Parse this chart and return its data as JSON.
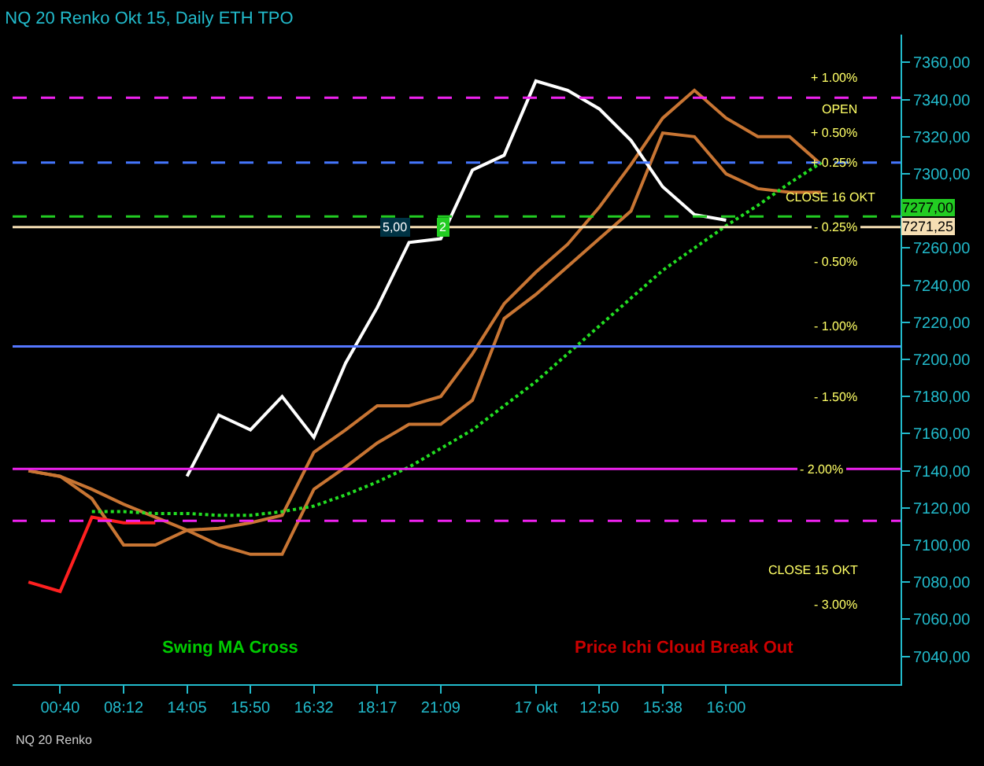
{
  "chart_data": {
    "type": "line",
    "title": "NQ 20 Renko Okt 15, Daily ETH TPO",
    "subtitle": "NQ 20 Renko",
    "categories": [
      null,
      "00:40",
      null,
      "08:12",
      null,
      "14:05",
      null,
      "15:50",
      null,
      "16:32",
      null,
      "18:17",
      null,
      "21:09",
      null,
      null,
      "17 okt",
      null,
      "12:50",
      null,
      "15:38",
      null,
      "16:00",
      null,
      null,
      null,
      null,
      null
    ],
    "ylim": [
      7025,
      7375
    ],
    "yticks": [
      {
        "value": 7040,
        "label": "7040,00"
      },
      {
        "value": 7060,
        "label": "7060,00"
      },
      {
        "value": 7080,
        "label": "7080,00"
      },
      {
        "value": 7100,
        "label": "7100,00"
      },
      {
        "value": 7120,
        "label": "7120,00"
      },
      {
        "value": 7140,
        "label": "7140,00"
      },
      {
        "value": 7160,
        "label": "7160,00"
      },
      {
        "value": 7180,
        "label": "7180,00"
      },
      {
        "value": 7200,
        "label": "7200,00"
      },
      {
        "value": 7220,
        "label": "7220,00"
      },
      {
        "value": 7240,
        "label": "7240,00"
      },
      {
        "value": 7260,
        "label": "7260,00"
      },
      {
        "value": 7280,
        "label": null
      },
      {
        "value": 7300,
        "label": "7300,00"
      },
      {
        "value": 7320,
        "label": "7320,00"
      },
      {
        "value": 7340,
        "label": "7340,00"
      },
      {
        "value": 7360,
        "label": "7360,00"
      }
    ],
    "grid": false,
    "series": [
      {
        "color": "#c87533",
        "values": [
          7140,
          7137,
          7130,
          7122,
          7115,
          7108,
          7109,
          7112,
          7116,
          7150,
          7162,
          7175,
          7175,
          7180,
          7203,
          7230,
          7247,
          7262,
          7282,
          7305,
          7330,
          7345,
          7330,
          7320,
          7320,
          7305,
          null,
          null
        ]
      },
      {
        "color": "#c87533",
        "values": [
          7140,
          7137,
          7125,
          7100,
          7100,
          7108,
          7100,
          7095,
          7095,
          7130,
          7142,
          7155,
          7165,
          7165,
          7178,
          7222,
          7235,
          7250,
          7265,
          7280,
          7322,
          7320,
          7300,
          7292,
          7290,
          7290,
          null,
          null
        ]
      },
      {
        "color": "#22dd22",
        "line_style": "dotted",
        "values": [
          null,
          null,
          7118,
          7118,
          7117,
          7117,
          7116,
          7116,
          7118,
          7121,
          7127,
          7134,
          7142,
          7152,
          7162,
          7175,
          7188,
          7203,
          7218,
          7233,
          7248,
          7260,
          7272,
          7283,
          7295,
          7306,
          null,
          null
        ]
      },
      {
        "color": "#ff2020",
        "values": [
          7080,
          7075,
          7115,
          7112,
          7112,
          null,
          null,
          null,
          null,
          null,
          null,
          null,
          null,
          null,
          null,
          null,
          null,
          null,
          null,
          null,
          null,
          null,
          null,
          null,
          null,
          null,
          null,
          null
        ]
      },
      {
        "color": "#ffffff",
        "values": [
          null,
          null,
          null,
          null,
          null,
          7137,
          7170,
          7162,
          7180,
          7158,
          7198,
          7228,
          7263,
          7265,
          7302,
          7310,
          7350,
          7345,
          7335,
          7318,
          7293,
          7278,
          7275,
          null,
          null,
          null,
          null,
          null
        ]
      }
    ],
    "ref_lines": [
      {
        "axis": "y",
        "value": 7277,
        "label": "7277,00",
        "color": "#22cc22",
        "line_style": "dashed"
      },
      {
        "axis": "y",
        "value": 7271.25,
        "label": "7271,25",
        "color": "#f5deb3",
        "line_style": "solid"
      },
      {
        "axis": "y",
        "value": 7306,
        "color": "#4477ff",
        "line_style": "dashed"
      },
      {
        "axis": "y",
        "value": 7341,
        "color": "#ee22ee",
        "line_style": "dashed"
      },
      {
        "axis": "y",
        "value": 7207,
        "color": "#5577ff",
        "line_style": "solid"
      },
      {
        "axis": "y",
        "value": 7141,
        "color": "#ee22ee",
        "line_style": "solid"
      },
      {
        "axis": "y",
        "value": 7113,
        "color": "#ee22ee",
        "line_style": "dashed"
      }
    ],
    "annotations": [
      "Swing MA Cross",
      "Price Ichi Cloud Break Out",
      "+ 1.00%",
      "OPEN",
      "+ 0.50%",
      {
        "text": "+ 0.25%",
        "y": 7306
      },
      "CLOSE 16 OKT",
      {
        "text": "- 0.25%",
        "y": 7271.25
      },
      "- 0.50%",
      "- 1.00%",
      "- 1.50%",
      {
        "text": "- 2.00%",
        "y": 7141
      },
      "CLOSE 15 OKT",
      "- 3.00%",
      {
        "text": "5,00",
        "y": 7271.25
      },
      {
        "text": "2",
        "y": 7271.25
      }
    ]
  }
}
